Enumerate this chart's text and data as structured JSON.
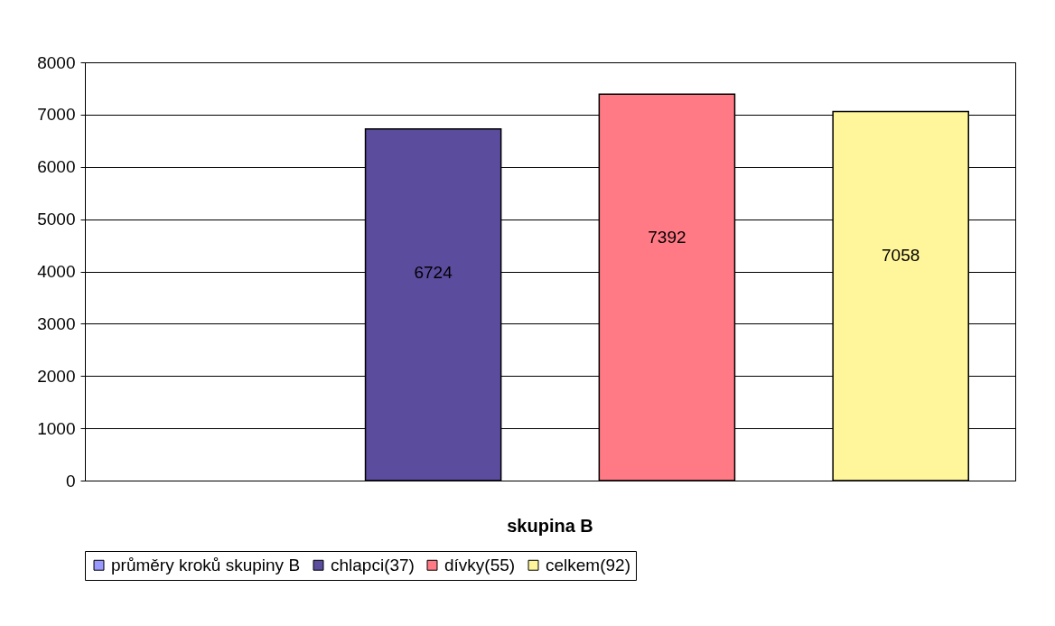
{
  "chart_data": {
    "type": "bar",
    "categories": [
      "skupina B"
    ],
    "series": [
      {
        "name": "průměry kroků skupiny B",
        "color": "#9999ff",
        "values": [
          null
        ]
      },
      {
        "name": "chlapci(37)",
        "color": "#5b4c9e",
        "values": [
          6724
        ]
      },
      {
        "name": "dívky(55)",
        "color": "#ff7a85",
        "values": [
          7392
        ]
      },
      {
        "name": "celkem(92)",
        "color": "#fff59a",
        "values": [
          7058
        ]
      }
    ],
    "ylim": [
      0,
      8000
    ],
    "yticks": [
      0,
      1000,
      2000,
      3000,
      4000,
      5000,
      6000,
      7000,
      8000
    ],
    "grid": "y",
    "legend": "bottom",
    "data_labels": true
  }
}
